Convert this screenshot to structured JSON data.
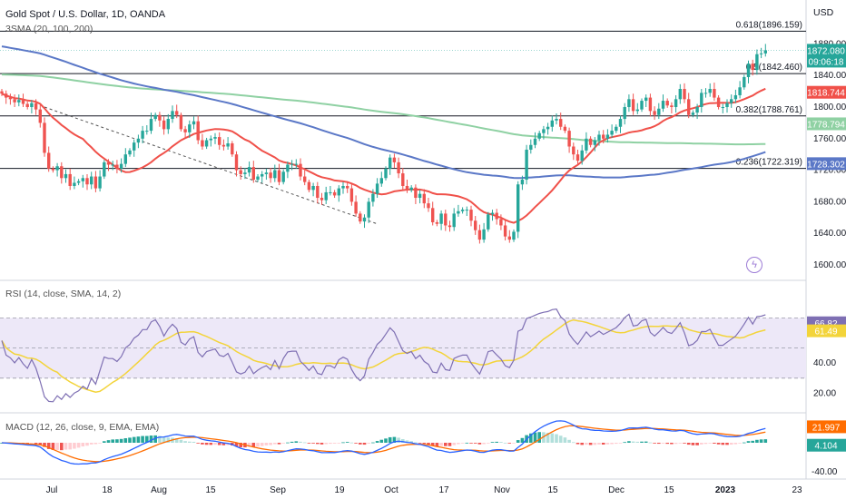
{
  "header": {
    "title": "Gold Spot / U.S. Dollar, 1D, OANDA",
    "indicator": "3SMA (20, 100, 200)",
    "currency": "USD"
  },
  "price_tag": {
    "value": "1872.080",
    "countdown": "09:06:18"
  },
  "colors": {
    "up": "#26a69a",
    "down": "#ef5350",
    "sma20": "#f0514a",
    "sma100": "#5b78c7",
    "sma200": "#8fd1a3",
    "rsi": "#7e6fb3",
    "rsi_ma": "#f3d43a",
    "rsi_bg": "#ede8f8",
    "macd": "#2962ff",
    "signal": "#ff6d00"
  },
  "chart_data": [
    {
      "type": "candlestick",
      "name": "main",
      "y_range": [
        1585,
        1915
      ],
      "y_ticks": [
        1600,
        1640,
        1680,
        1720,
        1760,
        1800,
        1840,
        1880
      ],
      "x_ticks": [
        "Jul",
        "18",
        "Aug",
        "15",
        "Sep",
        "19",
        "Oct",
        "17",
        "Nov",
        "15",
        "Dec",
        "15",
        "2023",
        "23"
      ],
      "fib_levels": [
        {
          "label": "0.618(1896.159)",
          "value": 1896.159
        },
        {
          "label": "0.5(1842.460)",
          "value": 1842.46
        },
        {
          "label": "0.382(1788.761)",
          "value": 1788.761
        },
        {
          "label": "0.236(1722.319)",
          "value": 1722.319
        }
      ],
      "badges": [
        {
          "label": "1818.744",
          "value": 1818.744,
          "color": "#f0514a"
        },
        {
          "label": "1778.794",
          "value": 1778.794,
          "color": "#8fd1a3"
        },
        {
          "label": "1728.302",
          "value": 1728.302,
          "color": "#5b78c7"
        }
      ],
      "close": [
        1817,
        1812,
        1810,
        1806,
        1809,
        1804,
        1800,
        1805,
        1797,
        1780,
        1742,
        1722,
        1720,
        1725,
        1710,
        1715,
        1700,
        1704,
        1706,
        1710,
        1702,
        1712,
        1697,
        1712,
        1730,
        1727,
        1727,
        1722,
        1728,
        1740,
        1745,
        1755,
        1760,
        1770,
        1770,
        1785,
        1790,
        1783,
        1772,
        1785,
        1795,
        1790,
        1772,
        1768,
        1778,
        1782,
        1758,
        1750,
        1758,
        1760,
        1762,
        1752,
        1750,
        1754,
        1740,
        1720,
        1715,
        1717,
        1724,
        1708,
        1712,
        1715,
        1717,
        1710,
        1720,
        1705,
        1718,
        1727,
        1728,
        1728,
        1712,
        1705,
        1695,
        1700,
        1685,
        1682,
        1692,
        1692,
        1688,
        1697,
        1700,
        1697,
        1680,
        1665,
        1655,
        1660,
        1680,
        1690,
        1703,
        1710,
        1722,
        1736,
        1730,
        1716,
        1700,
        1695,
        1698,
        1685,
        1690,
        1678,
        1672,
        1654,
        1652,
        1665,
        1650,
        1648,
        1665,
        1668,
        1670,
        1670,
        1656,
        1644,
        1632,
        1645,
        1664,
        1666,
        1658,
        1650,
        1636,
        1632,
        1642,
        1702,
        1708,
        1746,
        1752,
        1760,
        1767,
        1772,
        1775,
        1783,
        1785,
        1775,
        1770,
        1750,
        1740,
        1732,
        1745,
        1760,
        1752,
        1758,
        1765,
        1760,
        1765,
        1770,
        1775,
        1785,
        1800,
        1810,
        1795,
        1797,
        1808,
        1812,
        1795,
        1790,
        1798,
        1808,
        1802,
        1800,
        1810,
        1823,
        1810,
        1790,
        1793,
        1800,
        1818,
        1818,
        1823,
        1812,
        1800,
        1800,
        1805,
        1810,
        1815,
        1825,
        1838,
        1855,
        1847,
        1867,
        1868,
        1872
      ]
    },
    {
      "type": "line",
      "name": "rsi",
      "title": "RSI (14, close, SMA, 14, 2)",
      "y_range": [
        10,
        92
      ],
      "y_ticks": [
        40,
        20
      ],
      "bands": [
        30,
        50,
        70
      ],
      "badges": [
        {
          "label": "66.82",
          "value": 66.82,
          "color": "#7e6fb3"
        },
        {
          "label": "61.49",
          "value": 61.49,
          "color": "#f3d43a"
        }
      ]
    },
    {
      "type": "bar",
      "name": "macd",
      "title": "MACD (12, 26, close, 9, EMA, EMA)",
      "y_range": [
        -45,
        35
      ],
      "y_ticks": [
        -40
      ],
      "badges": [
        {
          "label": "21.997",
          "value": 22,
          "color": "#ff6d00"
        },
        {
          "label": "4.104",
          "value": 4.1,
          "color": "#26a69a"
        }
      ]
    }
  ]
}
